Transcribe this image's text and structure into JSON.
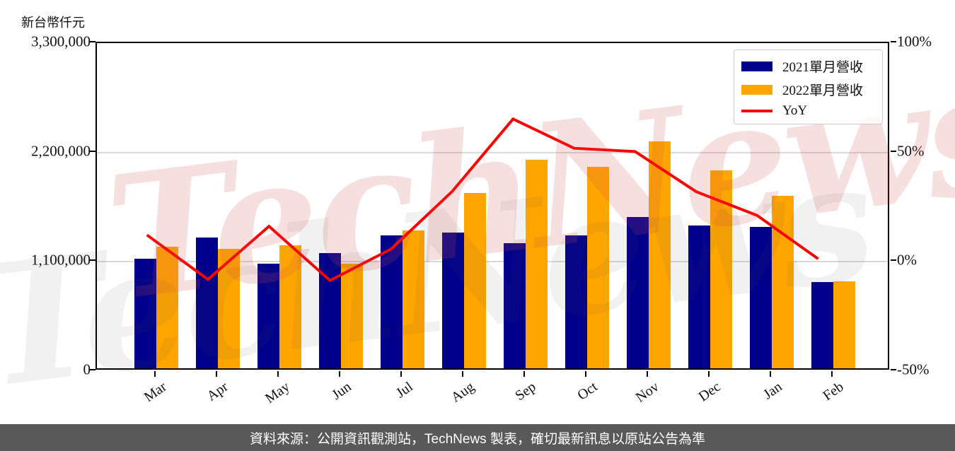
{
  "y_axis_unit_label": "新台幣仟元",
  "footer": {
    "source_text": "資料來源：公開資訊觀測站，TechNews 製表，確切最新訊息以原站公告為準"
  },
  "watermark": {
    "text": "TechNews"
  },
  "legend": {
    "items": [
      {
        "label": "2021單月營收",
        "color": "#00008B",
        "swatch": "box"
      },
      {
        "label": "2022單月營收",
        "color": "#FFA500",
        "swatch": "box"
      },
      {
        "label": "YoY",
        "color": "#FF0000",
        "swatch": "line"
      }
    ]
  },
  "colors": {
    "bar_2021": "#00008B",
    "bar_2022": "#FFA500",
    "yoy_line": "#FF0000",
    "gridline": "#d9d9d9",
    "footer_bg": "#595959"
  },
  "chart_data": {
    "type": "bar",
    "subtype": "grouped bars with overlaid line (dual axis)",
    "categories": [
      "Mar",
      "Apr",
      "May",
      "Jun",
      "Jul",
      "Aug",
      "Sep",
      "Oct",
      "Nov",
      "Dec",
      "Jan",
      "Feb"
    ],
    "series": [
      {
        "name": "2021單月營收",
        "type": "bar",
        "axis": "left",
        "color": "#00008B",
        "values": [
          1100000,
          1315000,
          1055000,
          1160000,
          1335000,
          1365000,
          1260000,
          1335000,
          1525000,
          1440000,
          1420000,
          865000
        ]
      },
      {
        "name": "2022單月營收",
        "type": "bar",
        "axis": "left",
        "color": "#FFA500",
        "values": [
          1225000,
          1200000,
          1235000,
          1050000,
          1385000,
          1765000,
          2100000,
          2030000,
          2285000,
          1990000,
          1735000,
          875000
        ]
      },
      {
        "name": "YoY",
        "type": "line",
        "axis": "right",
        "color": "#FF0000",
        "unit": "%",
        "values": [
          11.5,
          -9,
          15.5,
          -9.5,
          5,
          31.5,
          65,
          51.5,
          50,
          31.5,
          20.5,
          0.5
        ]
      }
    ],
    "left_axis": {
      "label": "新台幣仟元",
      "min": 0,
      "max": 3300000,
      "ticks": [
        0,
        1100000,
        2200000,
        3300000
      ],
      "tick_labels": [
        "0",
        "1,100,000",
        "2,200,000",
        "3,300,000"
      ]
    },
    "right_axis": {
      "min": -50,
      "max": 100,
      "ticks": [
        -50,
        0,
        50,
        100
      ],
      "tick_labels": [
        "-50%",
        "0%",
        "50%",
        "100%"
      ]
    },
    "grid": true,
    "legend_position": "upper right",
    "title": "",
    "xlabel": "",
    "ylabel": "新台幣仟元"
  }
}
